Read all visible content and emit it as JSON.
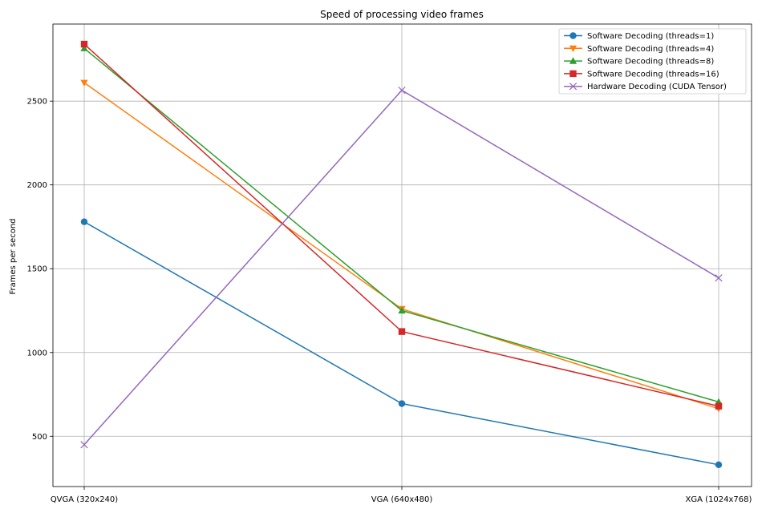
{
  "chart_data": {
    "type": "line",
    "title": "Speed of processing video frames",
    "xlabel": "",
    "ylabel": "Frames per second",
    "categories": [
      "QVGA (320x240)",
      "VGA (640x480)",
      "XGA (1024x768)"
    ],
    "ylim": [
      200,
      2960
    ],
    "yticks": [
      500,
      1000,
      1500,
      2000,
      2500
    ],
    "grid": true,
    "legend_position": "top-right",
    "series": [
      {
        "name": "Software Decoding (threads=1)",
        "values": [
          1780,
          695,
          330
        ],
        "color": "#1f77b4",
        "marker": "circle"
      },
      {
        "name": "Software Decoding (threads=4)",
        "values": [
          2610,
          1260,
          665
        ],
        "color": "#ff7f0e",
        "marker": "triangle-down"
      },
      {
        "name": "Software Decoding (threads=8)",
        "values": [
          2815,
          1250,
          705
        ],
        "color": "#2ca02c",
        "marker": "triangle-up"
      },
      {
        "name": "Software Decoding (threads=16)",
        "values": [
          2840,
          1125,
          680
        ],
        "color": "#d62728",
        "marker": "square"
      },
      {
        "name": "Hardware Decoding (CUDA Tensor)",
        "values": [
          450,
          2565,
          1445
        ],
        "color": "#9467bd",
        "marker": "x"
      }
    ]
  }
}
